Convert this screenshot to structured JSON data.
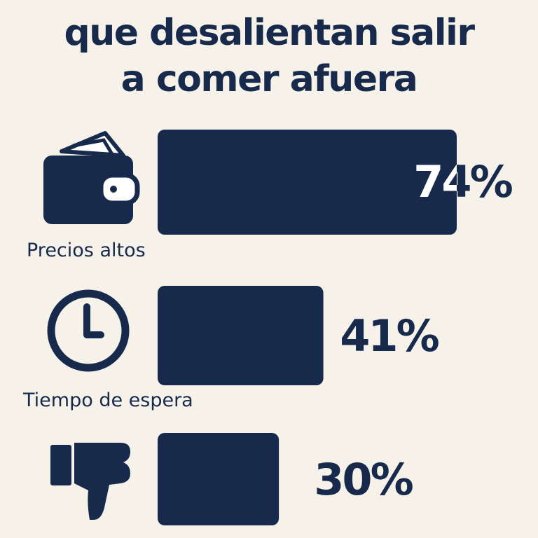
{
  "title": {
    "line1": "que desalientan salir",
    "line2": "a comer afuera"
  },
  "colors": {
    "background": "#f6f2ea",
    "bar": "#172a4b",
    "text": "#172a4b",
    "value_on_bar": "#ffffff"
  },
  "chart_data": {
    "type": "bar",
    "orientation": "horizontal",
    "categories": [
      "Precios altos",
      "Tiempo de espera",
      ""
    ],
    "values": [
      74,
      41,
      30
    ],
    "value_labels": [
      "74%",
      "41%",
      "30%"
    ],
    "icons": [
      "wallet-icon",
      "clock-icon",
      "thumbs-down-icon"
    ],
    "xlim": [
      0,
      100
    ]
  }
}
